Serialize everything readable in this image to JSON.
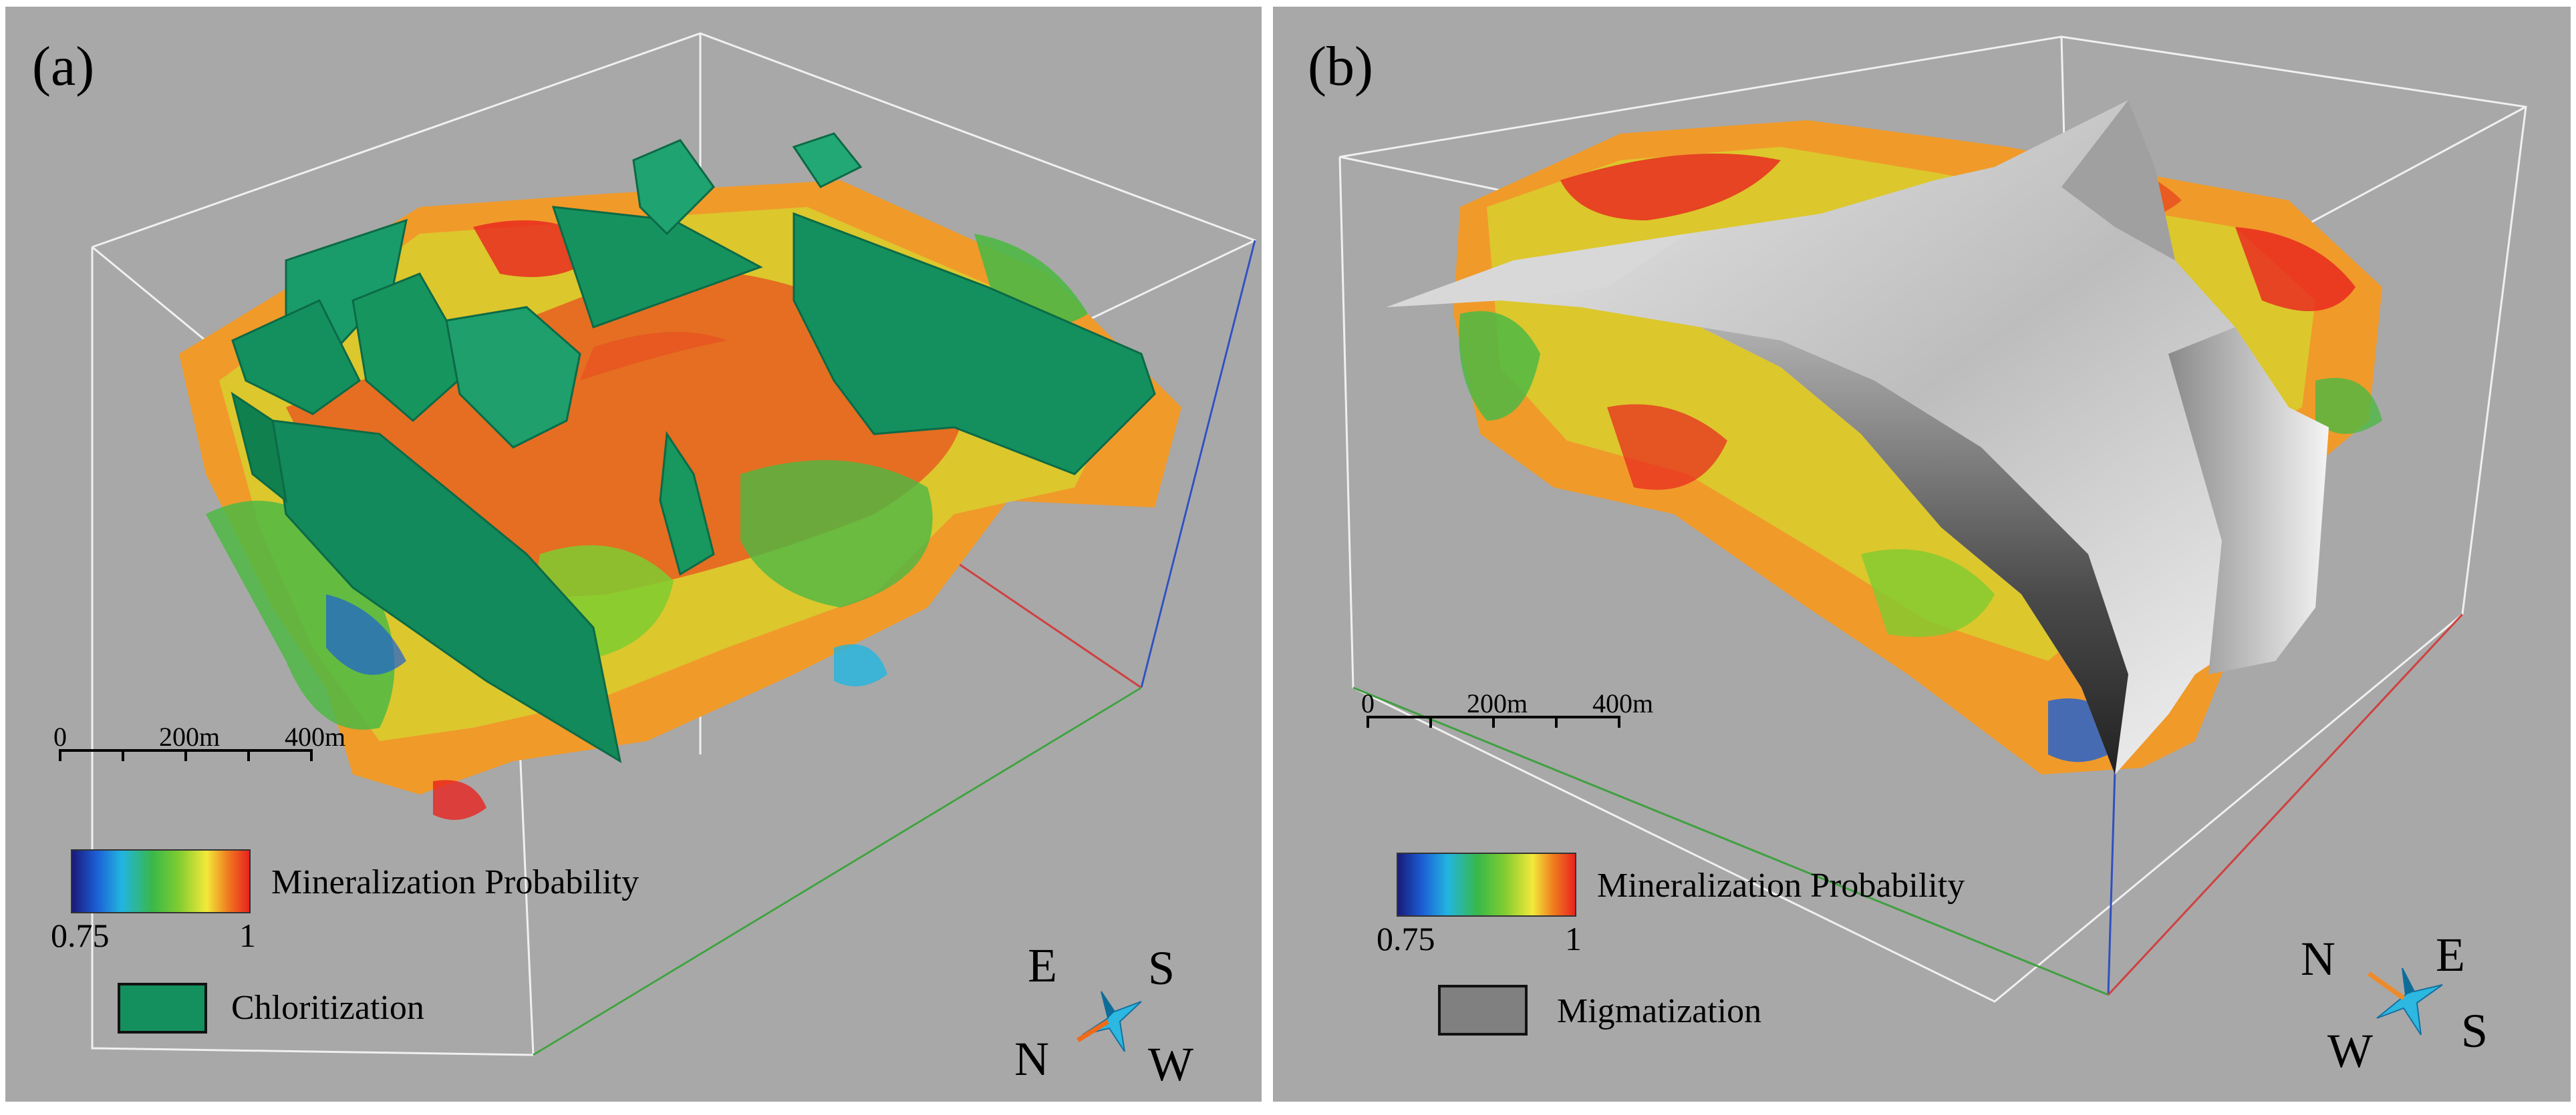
{
  "figure": {
    "panels": [
      {
        "id": "a",
        "label": "(a)",
        "scale_bar": {
          "ticks": [
            "0",
            "200m",
            "400m"
          ]
        },
        "colorbar": {
          "title": "Mineralization Probability",
          "min": "0.75",
          "max": "1"
        },
        "unit_legend": {
          "label": "Chloritization",
          "color": "#14905f"
        },
        "compass": {
          "top_left": "E",
          "top_right": "S",
          "bottom_left": "N",
          "bottom_right": "W"
        }
      },
      {
        "id": "b",
        "label": "(b)",
        "scale_bar": {
          "ticks": [
            "0",
            "200m",
            "400m"
          ]
        },
        "colorbar": {
          "title": "Mineralization Probability",
          "min": "0.75",
          "max": "1"
        },
        "unit_legend": {
          "label": "Migmatization",
          "color": "#808080"
        },
        "compass": {
          "top_left": "N",
          "top_right": "E",
          "bottom_left": "W",
          "bottom_right": "S"
        }
      }
    ]
  }
}
